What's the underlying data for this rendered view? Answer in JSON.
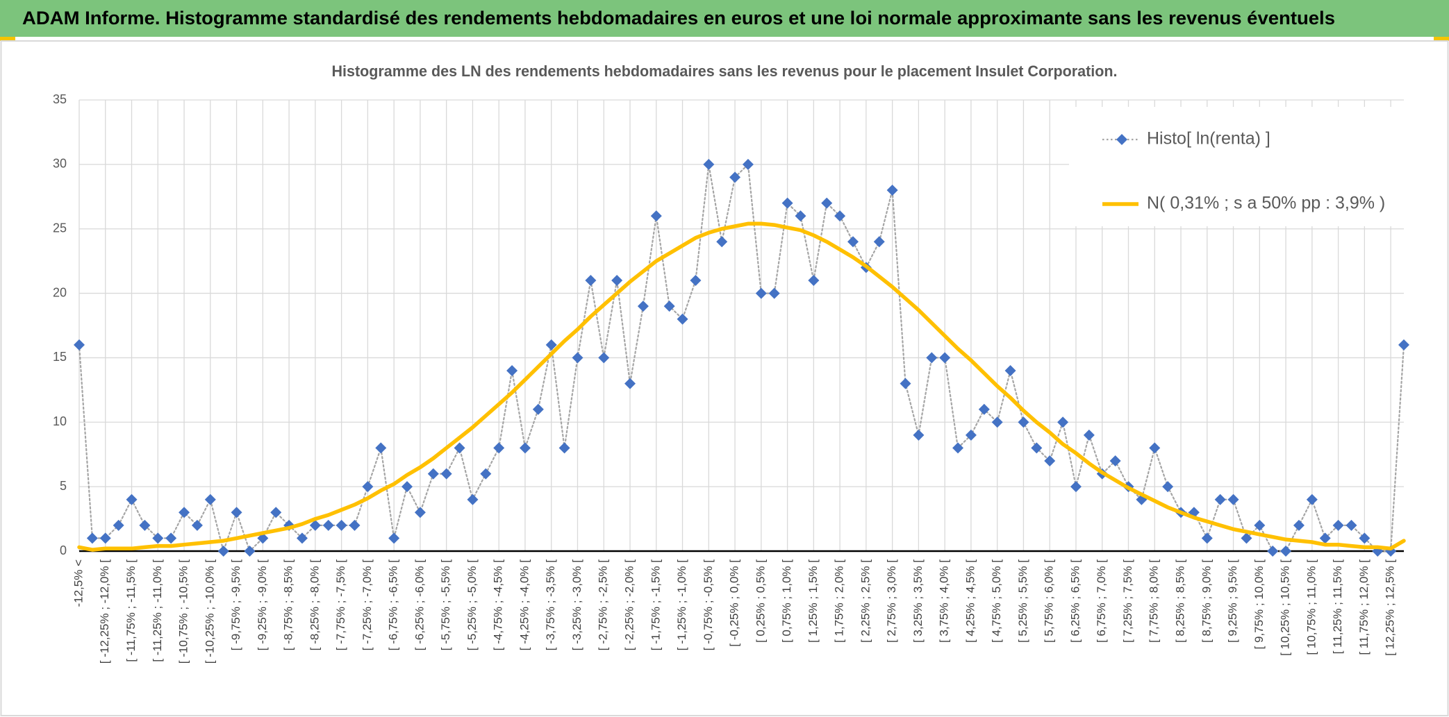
{
  "header": {
    "title": "ADAM Informe. Histogramme standardisé des rendements hebdomadaires en euros et une loi normale approximante sans les revenus éventuels"
  },
  "chart_data": {
    "type": "line",
    "title": "Histogramme des LN des rendements hebdomadaires sans les revenus pour le placement Insulet Corporation.",
    "categories": [
      "-12,5% <",
      null,
      "[ -12,25% ; -12,0% [",
      null,
      "[ -11,75% ; -11,5% [",
      null,
      "[ -11,25% ; -11,0% [",
      null,
      "[ -10,75% ; -10,5% [",
      null,
      "[ -10,25% ; -10,0% [",
      null,
      "[ -9,75% ; -9,5% [",
      null,
      "[ -9,25% ; -9,0% [",
      null,
      "[ -8,75% ; -8,5% [",
      null,
      "[ -8,25% ; -8,0% [",
      null,
      "[ -7,75% ; -7,5% [",
      null,
      "[ -7,25% ; -7,0% [",
      null,
      "[ -6,75% ; -6,5% [",
      null,
      "[ -6,25% ; -6,0% [",
      null,
      "[ -5,75% ; -5,5% [",
      null,
      "[ -5,25% ; -5,0% [",
      null,
      "[ -4,75% ; -4,5% [",
      null,
      "[ -4,25% ; -4,0% [",
      null,
      "[ -3,75% ; -3,5% [",
      null,
      "[ -3,25% ; -3,0% [",
      null,
      "[ -2,75% ; -2,5% [",
      null,
      "[ -2,25% ; -2,0% [",
      null,
      "[ -1,75% ; -1,5% [",
      null,
      "[ -1,25% ; -1,0% [",
      null,
      "[ -0,75% ; -0,5% [",
      null,
      "[ -0,25% ; 0,0% [",
      null,
      "[ 0,25% ; 0,5% [",
      null,
      "[ 0,75% ; 1,0% [",
      null,
      "[ 1,25% ; 1,5% [",
      null,
      "[ 1,75% ; 2,0% [",
      null,
      "[ 2,25% ; 2,5% [",
      null,
      "[ 2,75% ; 3,0% [",
      null,
      "[ 3,25% ; 3,5% [",
      null,
      "[ 3,75% ; 4,0% [",
      null,
      "[ 4,25% ; 4,5% [",
      null,
      "[ 4,75% ; 5,0% [",
      null,
      "[ 5,25% ; 5,5% [",
      null,
      "[ 5,75% ; 6,0% [",
      null,
      "[ 6,25% ; 6,5% [",
      null,
      "[ 6,75% ; 7,0% [",
      null,
      "[ 7,25% ; 7,5% [",
      null,
      "[ 7,75% ; 8,0% [",
      null,
      "[ 8,25% ; 8,5% [",
      null,
      "[ 8,75% ; 9,0% [",
      null,
      "[ 9,25% ; 9,5% [",
      null,
      "[ 9,75% ; 10,0% [",
      null,
      "[ 10,25% ; 10,5% [",
      null,
      "[ 10,75% ; 11,0% [",
      null,
      "[ 11,25% ; 11,5% [",
      null,
      "[ 11,75% ; 12,0% [",
      null,
      "[ 12,25% ; 12,5% [",
      null
    ],
    "series": [
      {
        "name": "Histo[ ln(renta) ]",
        "color": "#4472c4",
        "line_color": "#a5a5a5",
        "line_style": "dotted",
        "marker": "diamond",
        "values": [
          16,
          1,
          1,
          2,
          4,
          2,
          1,
          1,
          3,
          2,
          4,
          0,
          3,
          0,
          1,
          3,
          2,
          1,
          2,
          2,
          2,
          2,
          5,
          8,
          1,
          5,
          3,
          6,
          6,
          8,
          4,
          6,
          8,
          14,
          8,
          11,
          16,
          8,
          15,
          21,
          15,
          21,
          13,
          19,
          26,
          19,
          18,
          21,
          30,
          24,
          29,
          30,
          20,
          20,
          27,
          26,
          21,
          27,
          26,
          24,
          22,
          24,
          28,
          13,
          9,
          15,
          15,
          8,
          9,
          11,
          10,
          14,
          10,
          8,
          7,
          10,
          5,
          9,
          6,
          7,
          5,
          4,
          8,
          5,
          3,
          3,
          1,
          4,
          4,
          1,
          2,
          0,
          0,
          2,
          4,
          1,
          2,
          2,
          1,
          0,
          0,
          16
        ]
      },
      {
        "name": "N( 0,31% ; s a 50% pp : 3,9% )",
        "color": "#ffc000",
        "line_style": "solid",
        "marker": "none",
        "values": [
          0.3,
          0.1,
          0.2,
          0.2,
          0.2,
          0.3,
          0.4,
          0.4,
          0.5,
          0.6,
          0.7,
          0.8,
          1.0,
          1.2,
          1.4,
          1.6,
          1.8,
          2.1,
          2.5,
          2.8,
          3.2,
          3.6,
          4.1,
          4.7,
          5.2,
          5.9,
          6.5,
          7.2,
          8.0,
          8.8,
          9.6,
          10.5,
          11.4,
          12.3,
          13.3,
          14.3,
          15.3,
          16.3,
          17.2,
          18.2,
          19.1,
          20.0,
          20.9,
          21.7,
          22.5,
          23.1,
          23.7,
          24.3,
          24.7,
          25.0,
          25.2,
          25.4,
          25.4,
          25.3,
          25.1,
          24.9,
          24.5,
          24.0,
          23.4,
          22.8,
          22.1,
          21.3,
          20.5,
          19.6,
          18.7,
          17.7,
          16.7,
          15.7,
          14.8,
          13.8,
          12.8,
          11.9,
          10.9,
          10.0,
          9.2,
          8.3,
          7.6,
          6.8,
          6.1,
          5.5,
          4.9,
          4.4,
          3.9,
          3.4,
          3.0,
          2.6,
          2.3,
          2.0,
          1.7,
          1.5,
          1.3,
          1.1,
          0.9,
          0.8,
          0.7,
          0.5,
          0.5,
          0.4,
          0.3,
          0.3,
          0.2,
          0.8
        ]
      }
    ],
    "ylim": [
      0,
      35
    ],
    "yticks": [
      0,
      5,
      10,
      15,
      20,
      25,
      30,
      35
    ],
    "grid": true,
    "legend": "top-right"
  }
}
